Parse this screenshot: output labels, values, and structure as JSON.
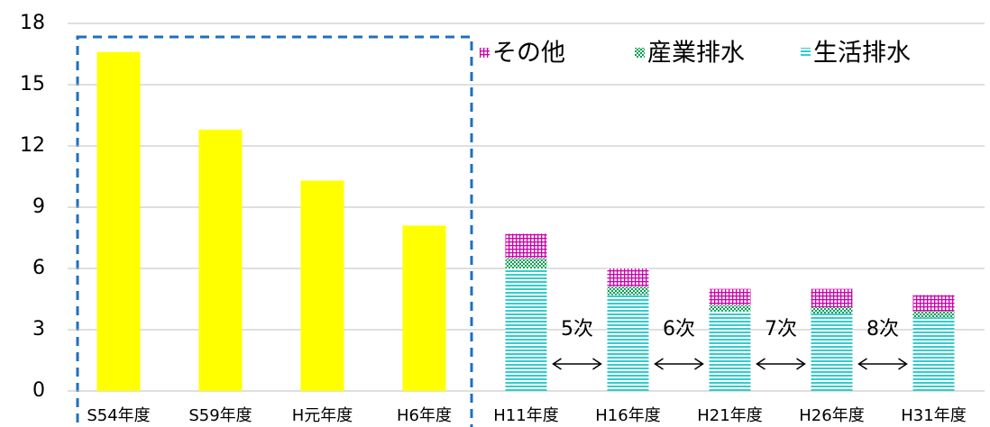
{
  "chart_data": {
    "type": "bar",
    "stacked": true,
    "categories": [
      "S54年度",
      "S59年度",
      "H元年度",
      "H6年度",
      "H11年度",
      "H16年度",
      "H21年度",
      "H26年度",
      "H31年度"
    ],
    "series": [
      {
        "color": "#ffff00",
        "pattern": "solid",
        "values": [
          16.6,
          12.8,
          10.3,
          8.1,
          null,
          null,
          null,
          null,
          null
        ]
      },
      {
        "name": "生活排水",
        "color": "#33cccc",
        "pattern": "lines",
        "values": [
          null,
          null,
          null,
          null,
          6.0,
          4.7,
          3.9,
          3.8,
          3.6
        ]
      },
      {
        "name": "産業排水",
        "color": "#00a050",
        "pattern": "dots",
        "values": [
          null,
          null,
          null,
          null,
          0.5,
          0.4,
          0.3,
          0.3,
          0.3
        ]
      },
      {
        "name": "その他",
        "color": "#cc00aa",
        "pattern": "grid",
        "values": [
          null,
          null,
          null,
          null,
          1.2,
          0.9,
          0.8,
          0.9,
          0.8
        ]
      }
    ],
    "annotations": [
      "5次",
      "6次",
      "7次",
      "8次"
    ],
    "ylim": [
      0,
      18
    ],
    "yticks": [
      0,
      3,
      6,
      9,
      12,
      15,
      18
    ],
    "grid": true,
    "legend": "top-right"
  }
}
